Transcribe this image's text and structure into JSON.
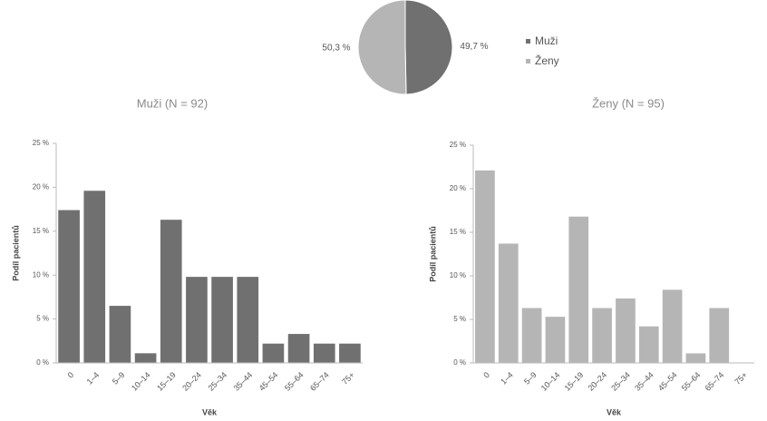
{
  "chart_data": [
    {
      "type": "pie",
      "categories": [
        "Muži",
        "Ženy"
      ],
      "values": [
        49.7,
        50.3
      ],
      "value_labels": [
        "49,7 %",
        "50,3 %"
      ],
      "colors": [
        "#707070",
        "#b5b5b5"
      ],
      "legend": "right"
    },
    {
      "type": "bar",
      "title": "Muži (N = 92)",
      "x_label": "Věk",
      "y_label": "Podíl pacientů",
      "categories": [
        "0",
        "1–4",
        "5–9",
        "10–14",
        "15–19",
        "20–24",
        "25–34",
        "35–44",
        "45–54",
        "55–64",
        "65–74",
        "75+"
      ],
      "values": [
        17.4,
        19.6,
        6.5,
        1.1,
        16.3,
        9.8,
        9.8,
        9.8,
        2.2,
        3.3,
        2.2,
        2.2
      ],
      "color": "#707070",
      "ylim": [
        0,
        25
      ],
      "yticks": [
        {
          "value": 0,
          "label": "0 %"
        },
        {
          "value": 5,
          "label": "5 %"
        },
        {
          "value": 10,
          "label": "10 %"
        },
        {
          "value": 15,
          "label": "15 %"
        },
        {
          "value": 20,
          "label": "20 %"
        },
        {
          "value": 25,
          "label": "25 %"
        }
      ]
    },
    {
      "type": "bar",
      "title": "Ženy (N = 95)",
      "x_label": "Věk",
      "y_label": "Podíl pacientů",
      "categories": [
        "0",
        "1–4",
        "5–9",
        "10–14",
        "15–19",
        "20–24",
        "25–34",
        "35–44",
        "45–54",
        "55–64",
        "65–74",
        "75+"
      ],
      "values": [
        22.1,
        13.7,
        6.3,
        5.3,
        16.8,
        6.3,
        7.4,
        4.2,
        8.4,
        1.1,
        6.3,
        0
      ],
      "color": "#b5b5b5",
      "ylim": [
        0,
        25
      ],
      "yticks": [
        {
          "value": 0,
          "label": "0 %"
        },
        {
          "value": 5,
          "label": "5 %"
        },
        {
          "value": 10,
          "label": "10 %"
        },
        {
          "value": 15,
          "label": "15 %"
        },
        {
          "value": 20,
          "label": "20 %"
        },
        {
          "value": 25,
          "label": "25 %"
        }
      ]
    }
  ]
}
